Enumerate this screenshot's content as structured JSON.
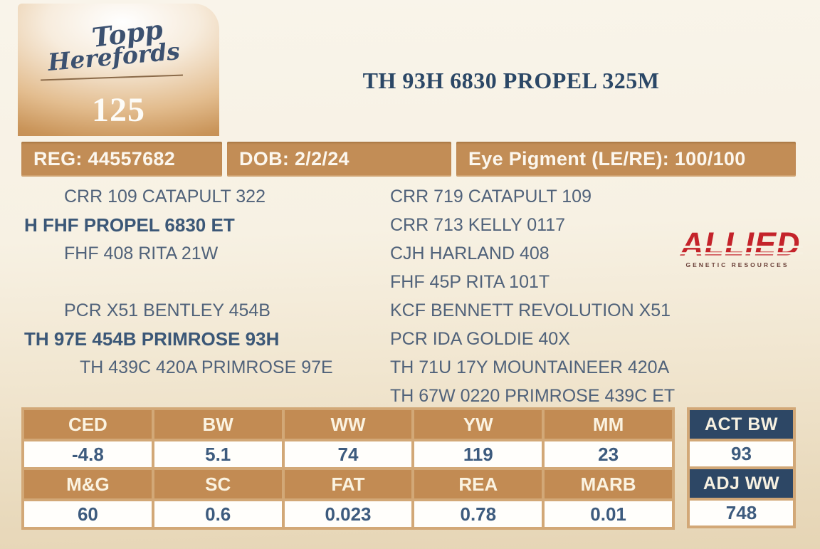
{
  "brand": {
    "name_line1": "Topp",
    "name_line2": "Herefords",
    "lot_number": "125"
  },
  "header": {
    "title": "TH 93H 6830 PROPEL 325M"
  },
  "info_bar": {
    "reg": "REG: 44557682",
    "dob": "DOB: 2/2/24",
    "eye_pigment": "Eye Pigment (LE/RE): 100/100"
  },
  "pedigree": {
    "left": [
      "CRR 109 CATAPULT 322",
      "H FHF PROPEL 6830 ET",
      "FHF 408 RITA 21W",
      "PCR X51 BENTLEY 454B",
      "TH 97E 454B PRIMROSE 93H",
      "TH 439C 420A PRIMROSE 97E"
    ],
    "right": [
      "CRR 719 CATAPULT 109",
      "CRR 713 KELLY 0117",
      "CJH HARLAND 408",
      "FHF 45P RITA 101T",
      "KCF BENNETT REVOLUTION X51",
      "PCR IDA GOLDIE 40X",
      "TH 71U 17Y MOUNTAINEER 420A",
      "TH 67W 0220 PRIMROSE 439C ET"
    ]
  },
  "allied_logo": {
    "name": "ALLIED",
    "subtext": "GENETIC RESOURCES"
  },
  "epd_table": {
    "rows": [
      {
        "headers": [
          "CED",
          "BW",
          "WW",
          "YW",
          "MM"
        ],
        "values": [
          "-4.8",
          "5.1",
          "74",
          "119",
          "23"
        ]
      },
      {
        "headers": [
          "M&G",
          "SC",
          "FAT",
          "REA",
          "MARB"
        ],
        "values": [
          "60",
          "0.6",
          "0.023",
          "0.78",
          "0.01"
        ]
      }
    ]
  },
  "weights": {
    "act_bw_label": "ACT BW",
    "act_bw_value": "93",
    "adj_ww_label": "ADJ WW",
    "adj_ww_value": "748"
  },
  "colors": {
    "tan": "#c28d56",
    "navy_text": "#2b4766",
    "navy_header": "#2d4765",
    "red": "#c4232a",
    "cream": "#f7f1e3"
  }
}
